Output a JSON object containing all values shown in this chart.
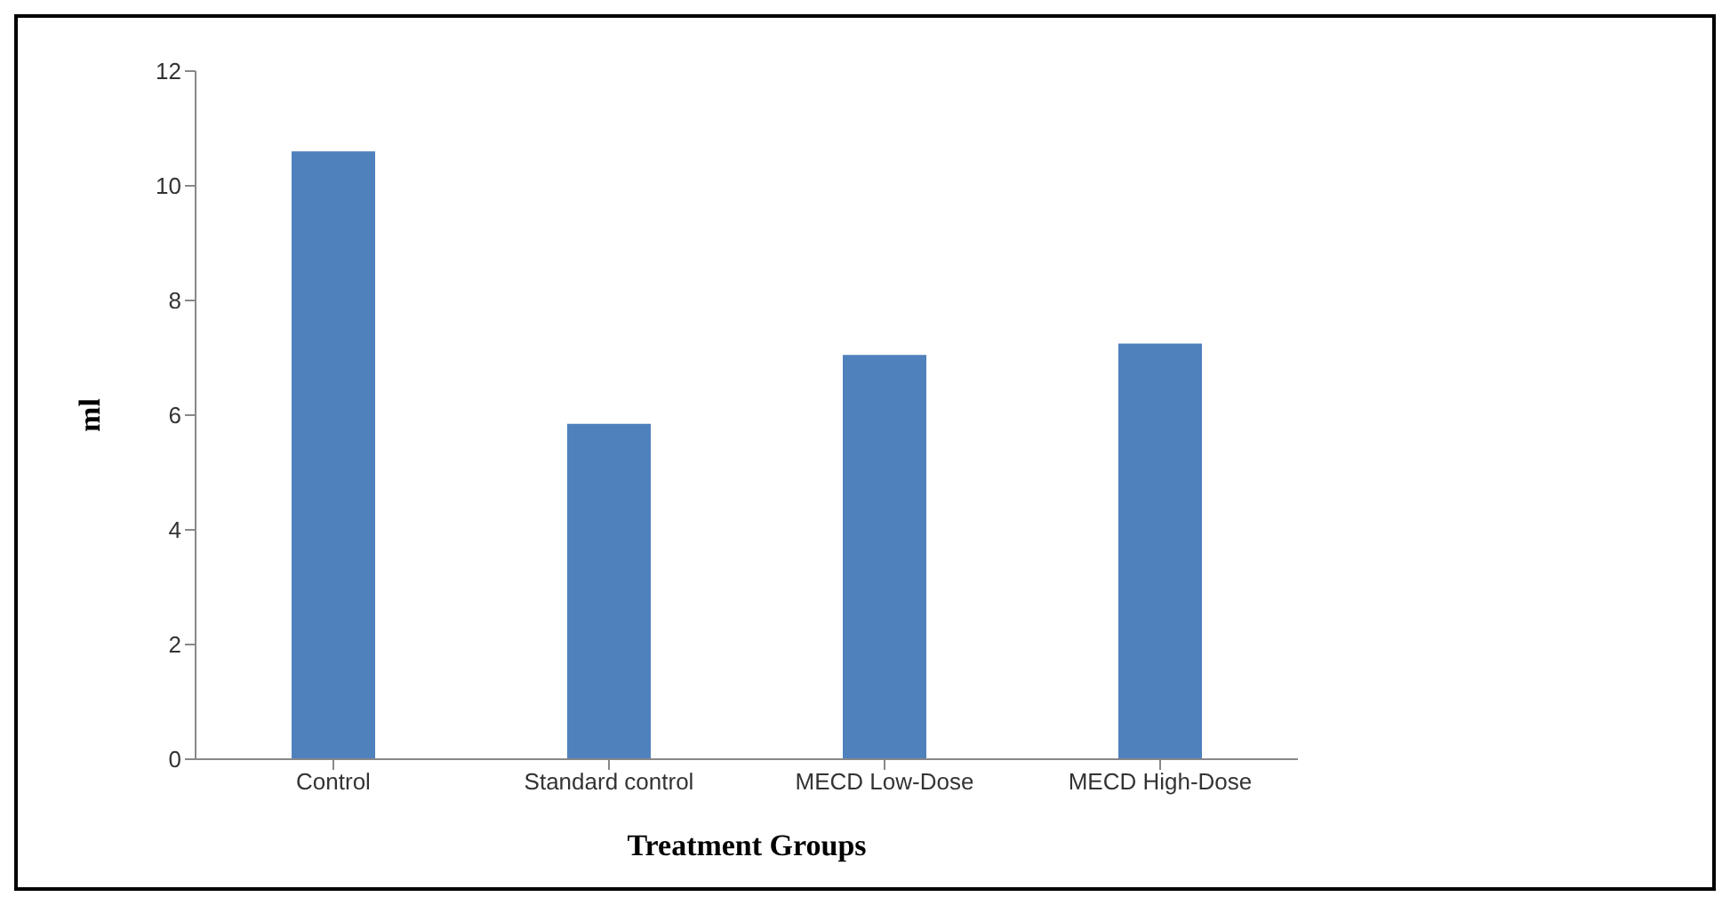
{
  "chart_data": {
    "type": "bar",
    "xlabel": "Treatment Groups",
    "ylabel": "ml",
    "categories": [
      "Control",
      "Standard control",
      "MECD Low-Dose",
      "MECD High-Dose"
    ],
    "values": [
      10.6,
      5.85,
      7.05,
      7.25
    ],
    "color": "#4f81bd",
    "ylim": [
      0,
      12
    ],
    "yticks": [
      0,
      2,
      4,
      6,
      8,
      10,
      12
    ],
    "grid": false,
    "legend": false
  }
}
